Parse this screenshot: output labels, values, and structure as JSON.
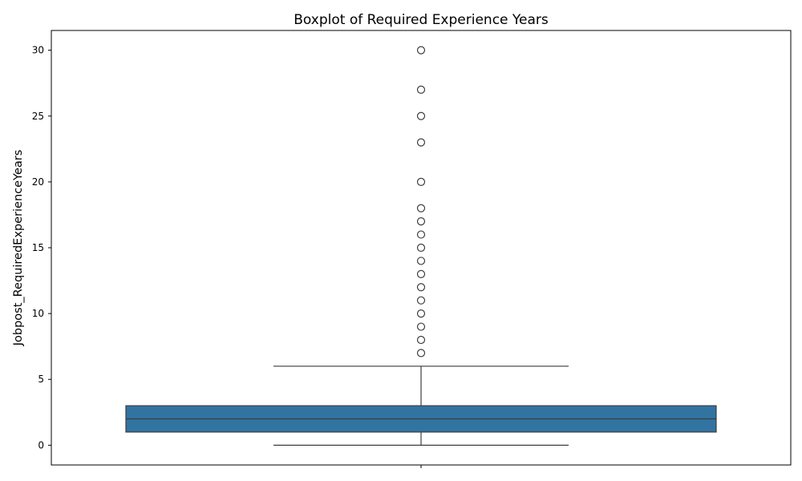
{
  "chart_data": {
    "type": "boxplot",
    "title": "Boxplot of Required Experience Years",
    "xlabel": "",
    "ylabel": "Jobpost_RequiredExperienceYears",
    "ylim": [
      -1.5,
      31.5
    ],
    "yticks": [
      0,
      5,
      10,
      15,
      20,
      25,
      30
    ],
    "grid": false,
    "box": {
      "min": 0,
      "q1": 1,
      "median": 2,
      "q3": 3,
      "max": 6,
      "outliers": [
        7,
        8,
        9,
        10,
        11,
        12,
        13,
        14,
        15,
        16,
        17,
        18,
        20,
        23,
        25,
        27,
        30
      ]
    },
    "colors": {
      "box_fill": "#3274a1",
      "lines": "#3d3d3d",
      "axes": "#000000"
    }
  }
}
